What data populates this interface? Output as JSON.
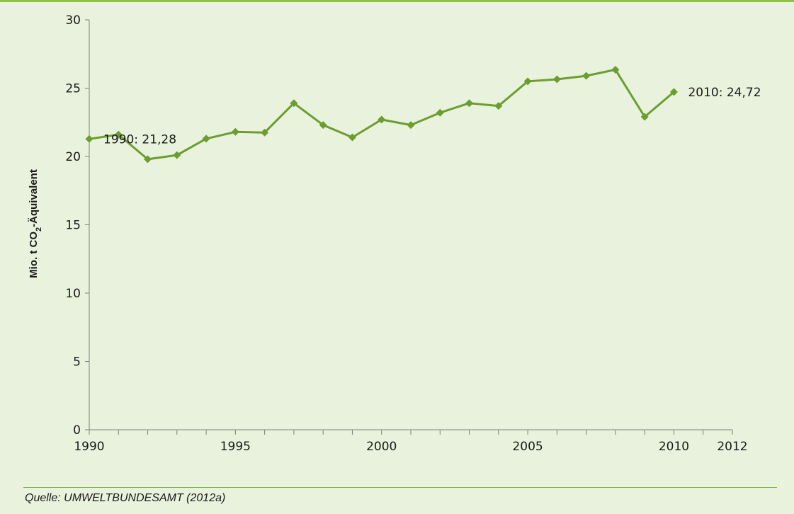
{
  "chart_data": {
    "type": "line",
    "xlabel": "",
    "ylabel": "Mio. t CO",
    "ylabel_sub": "2",
    "ylabel_tail": "-Äquivalent",
    "xlim": [
      1990,
      2012
    ],
    "ylim": [
      0,
      30
    ],
    "y_ticks": [
      0,
      5,
      10,
      15,
      20,
      25,
      30
    ],
    "x_tick_labels": [
      1990,
      1995,
      2000,
      2005,
      2010,
      2012
    ],
    "grid": false,
    "line_color": "#6b9e2f",
    "series": [
      {
        "x": [
          1990,
          1991,
          1992,
          1993,
          1994,
          1995,
          1996,
          1997,
          1998,
          1999,
          2000,
          2001,
          2002,
          2003,
          2004,
          2005,
          2006,
          2007,
          2008,
          2009,
          2010
        ],
        "values": [
          21.28,
          21.6,
          19.8,
          20.1,
          21.3,
          21.8,
          21.75,
          23.9,
          22.3,
          21.4,
          22.7,
          22.3,
          23.2,
          23.9,
          23.7,
          25.5,
          25.65,
          25.9,
          26.35,
          22.9,
          24.72
        ]
      }
    ],
    "annotations": [
      {
        "x": 1990,
        "y": 21.28,
        "text": "1990: 21,28"
      },
      {
        "x": 2010,
        "y": 24.72,
        "text": "2010: 24,72"
      }
    ]
  },
  "source": "Quelle: UMWELTBUNDESAMT (2012a)"
}
